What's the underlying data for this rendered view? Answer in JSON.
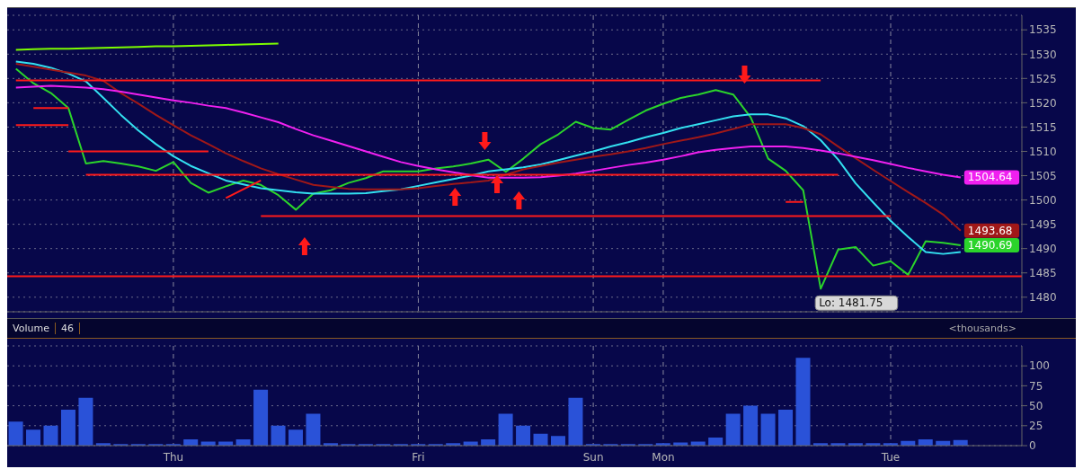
{
  "chart_data": [
    {
      "type": "line",
      "categories": [
        null,
        null,
        null,
        null,
        null,
        null,
        null,
        null,
        null,
        null,
        null,
        null,
        null,
        null,
        null,
        null,
        null,
        null,
        null,
        null,
        null,
        null,
        null,
        null,
        null,
        null,
        null,
        null,
        null,
        null,
        null,
        null,
        null,
        null,
        null,
        null,
        null,
        null,
        null,
        null,
        null,
        null,
        null,
        null,
        null,
        null,
        null,
        null,
        null,
        null,
        null,
        null,
        null,
        null,
        null,
        null,
        null,
        null
      ],
      "ylim": [
        1477,
        1538
      ],
      "yticks": [
        1480,
        1485,
        1490,
        1495,
        1500,
        1505,
        1510,
        1515,
        1520,
        1525,
        1530,
        1535
      ],
      "tick_labels": "y",
      "grid": true,
      "legend": false,
      "series": [
        {
          "color": "#2bd42b",
          "values": [
            1527,
            1524,
            1522,
            1518.9,
            1507.5,
            1508,
            1507.5,
            1506.9,
            1506,
            1507.8,
            1503.5,
            1501.5,
            1502.8,
            1504,
            1503.1,
            1501,
            1498,
            1501.3,
            1502,
            1503.5,
            1504.5,
            1505.9,
            1505.9,
            1505.9,
            1506.5,
            1506.9,
            1507.5,
            1508.3,
            1505.8,
            1508.5,
            1511.5,
            1513.5,
            1516.1,
            1514.8,
            1514.5,
            1516.5,
            1518.4,
            1519.8,
            1521,
            1521.7,
            1522.6,
            1521.7,
            1517,
            1508.5,
            1506,
            1502,
            1481.75,
            1489.8,
            1490.3,
            1486.5,
            1487.4,
            1484.6,
            1491.5,
            1491.2,
            1490.69,
            null,
            null,
            null
          ],
          "value_labels": [
            null,
            null,
            null,
            null,
            null,
            null,
            null,
            null,
            null,
            null,
            null,
            null,
            null,
            null,
            null,
            null,
            null,
            null,
            null,
            null,
            null,
            null,
            null,
            null,
            null,
            null,
            null,
            null,
            null,
            null,
            null,
            null,
            null,
            null,
            null,
            null,
            null,
            null,
            null,
            null,
            null,
            null,
            null,
            null,
            null,
            null,
            null,
            null,
            null,
            null,
            null,
            null,
            null,
            null,
            "1490.69",
            null,
            null,
            null
          ]
        },
        {
          "color": "#33e0f0",
          "values": [
            1528.5,
            1528,
            1527.2,
            1526,
            1524.4,
            1521,
            1517.5,
            1514.3,
            1511.5,
            1509,
            1507,
            1505.5,
            1504,
            1503.2,
            1502.4,
            1502,
            1501.6,
            1501.3,
            1501.3,
            1501.3,
            1501.4,
            1501.8,
            1502.2,
            1502.9,
            1503.6,
            1504.3,
            1505,
            1505.9,
            1506.3,
            1506.7,
            1507.3,
            1508.2,
            1509.1,
            1510,
            1511,
            1511.9,
            1512.9,
            1513.8,
            1514.8,
            1515.6,
            1516.4,
            1517.2,
            1517.6,
            1517.6,
            1516.8,
            1515.2,
            1512.3,
            1508.3,
            1503.4,
            1499.5,
            1495.7,
            1492.4,
            1489.3,
            1488.9,
            1489.3,
            null,
            null,
            null
          ]
        },
        {
          "color": "#a01818",
          "values": [
            1528,
            1527.4,
            1526.8,
            1526.2,
            1525.6,
            1524.5,
            1522,
            1519.8,
            1517.5,
            1515.4,
            1513.3,
            1511.5,
            1509.6,
            1508,
            1506.5,
            1505.3,
            1504.2,
            1503.1,
            1502.7,
            1502.3,
            1502.2,
            1502.2,
            1502.2,
            1502.4,
            1502.9,
            1503.3,
            1503.6,
            1504,
            1505.2,
            1506.3,
            1507,
            1507.7,
            1508.3,
            1508.9,
            1509.4,
            1510,
            1510.7,
            1511.5,
            1512.2,
            1512.9,
            1513.7,
            1514.6,
            1515.6,
            1515.6,
            1515.6,
            1514.8,
            1513.5,
            1511,
            1508.6,
            1506.2,
            1503.9,
            1501.6,
            1499.4,
            1497,
            1493.68,
            null,
            null,
            null
          ],
          "value_labels": [
            null,
            null,
            null,
            null,
            null,
            null,
            null,
            null,
            null,
            null,
            null,
            null,
            null,
            null,
            null,
            null,
            null,
            null,
            null,
            null,
            null,
            null,
            null,
            null,
            null,
            null,
            null,
            null,
            null,
            null,
            null,
            null,
            null,
            null,
            null,
            null,
            null,
            null,
            null,
            null,
            null,
            null,
            null,
            null,
            null,
            null,
            null,
            null,
            null,
            null,
            null,
            null,
            null,
            null,
            "1493.68",
            null,
            null,
            null
          ]
        },
        {
          "color": "#f020f0",
          "values": [
            1523.1,
            1523.3,
            1523.5,
            1523.3,
            1523.1,
            1522.8,
            1522.3,
            1521.7,
            1521.1,
            1520.5,
            1520,
            1519.4,
            1518.9,
            1518,
            1517,
            1516,
            1514.6,
            1513.3,
            1512.2,
            1511.1,
            1510,
            1508.9,
            1507.8,
            1507,
            1506.3,
            1505.7,
            1505.1,
            1504.6,
            1504.6,
            1504.6,
            1504.7,
            1505,
            1505.4,
            1506,
            1506.6,
            1507.2,
            1507.7,
            1508.3,
            1509,
            1509.8,
            1510.3,
            1510.7,
            1511,
            1511,
            1511,
            1510.7,
            1510.2,
            1509.6,
            1508.9,
            1508.2,
            1507.4,
            1506.6,
            1505.9,
            1505.2,
            1504.64,
            null,
            null,
            null
          ],
          "value_labels": [
            null,
            null,
            null,
            null,
            null,
            null,
            null,
            null,
            null,
            null,
            null,
            null,
            null,
            null,
            null,
            null,
            null,
            null,
            null,
            null,
            null,
            null,
            null,
            null,
            null,
            null,
            null,
            null,
            null,
            null,
            null,
            null,
            null,
            null,
            null,
            null,
            null,
            null,
            null,
            null,
            null,
            null,
            null,
            null,
            null,
            null,
            null,
            null,
            null,
            null,
            null,
            null,
            null,
            null,
            "1504.64",
            null,
            null,
            null
          ]
        },
        {
          "color": "#7cfc00",
          "values": [
            1530.9,
            1531,
            1531.1,
            1531.1,
            1531.2,
            1531.3,
            1531.4,
            1531.5,
            1531.6,
            1531.6,
            1531.7,
            1531.8,
            1531.9,
            1532,
            1532.1,
            1532.2,
            null,
            null,
            null,
            null,
            null,
            null,
            null,
            null,
            null,
            null,
            null,
            null,
            null,
            null,
            null,
            null,
            null,
            null,
            null,
            null,
            null,
            null,
            null,
            null,
            null,
            null,
            null,
            null,
            null,
            null,
            null,
            null,
            null,
            null,
            null,
            null,
            null,
            null,
            null,
            null,
            null,
            null
          ]
        },
        {
          "color": "#ff1a1a",
          "values": [
            1524.6,
            1524.6,
            1524.6,
            1524.6,
            1524.6,
            1524.6,
            1524.6,
            1524.6,
            1524.6,
            1524.6,
            1524.6,
            1524.6,
            1524.6,
            1524.6,
            1524.6,
            1524.6,
            1524.6,
            1524.6,
            1524.6,
            1524.6,
            1524.6,
            1524.6,
            1524.6,
            1524.6,
            1524.6,
            1524.6,
            1524.6,
            1524.6,
            1524.6,
            1524.6,
            1524.6,
            1524.6,
            1524.6,
            1524.6,
            1524.6,
            1524.6,
            1524.6,
            1524.6,
            1524.6,
            1524.6,
            1524.6,
            1524.6,
            1524.6,
            1524.6,
            1524.6,
            1524.6,
            1524.6,
            null,
            null,
            null,
            null,
            null,
            null,
            null,
            null,
            null,
            null,
            null
          ]
        },
        {
          "color": "#ff1a1a",
          "values": [
            null,
            1518.9,
            1518.9,
            1518.9,
            null,
            null,
            null,
            null,
            null,
            null,
            null,
            null,
            null,
            null,
            null,
            null,
            null,
            null,
            null,
            null,
            null,
            null,
            null,
            null,
            null,
            null,
            null,
            null,
            null,
            null,
            null,
            null,
            null,
            null,
            null,
            null,
            null,
            null,
            null,
            null,
            null,
            null,
            null,
            null,
            null,
            null,
            null,
            null,
            null,
            null,
            null,
            null,
            null,
            null,
            null,
            null,
            null,
            null
          ]
        },
        {
          "color": "#ff1a1a",
          "values": [
            1515.4,
            1515.4,
            1515.4,
            1515.4,
            null,
            null,
            null,
            null,
            null,
            null,
            null,
            null,
            null,
            null,
            null,
            null,
            null,
            null,
            null,
            null,
            null,
            null,
            null,
            null,
            null,
            null,
            null,
            null,
            null,
            null,
            null,
            null,
            null,
            null,
            null,
            null,
            null,
            null,
            null,
            null,
            null,
            null,
            null,
            null,
            null,
            null,
            null,
            null,
            null,
            null,
            null,
            null,
            null,
            null,
            null,
            null,
            null,
            null
          ]
        },
        {
          "color": "#ff1a1a",
          "values": [
            null,
            null,
            null,
            1510,
            1510,
            1510,
            1510,
            1510,
            1510,
            1510,
            1510,
            1510,
            null,
            null,
            null,
            null,
            null,
            null,
            null,
            null,
            null,
            null,
            null,
            null,
            null,
            null,
            null,
            null,
            null,
            null,
            null,
            null,
            null,
            null,
            null,
            null,
            null,
            null,
            null,
            null,
            null,
            null,
            null,
            null,
            null,
            null,
            null,
            null,
            null,
            null,
            null,
            null,
            null,
            null,
            null,
            null,
            null,
            null
          ]
        },
        {
          "color": "#ff1a1a",
          "values": [
            null,
            null,
            null,
            null,
            1505.2,
            1505.2,
            1505.2,
            1505.2,
            1505.2,
            1505.2,
            1505.2,
            1505.2,
            1505.2,
            1505.2,
            1505.2,
            1505.2,
            1505.2,
            1505.2,
            1505.2,
            1505.2,
            1505.2,
            1505.2,
            1505.2,
            1505.2,
            1505.2,
            1505.2,
            1505.2,
            1505.2,
            1505.2,
            1505.2,
            1505.2,
            1505.2,
            1505.2,
            1505.2,
            1505.2,
            1505.2,
            1505.2,
            1505.2,
            1505.2,
            1505.2,
            1505.2,
            1505.2,
            1505.2,
            1505.2,
            1505.2,
            1505.2,
            1505.2,
            1505.2,
            null,
            null,
            null,
            null,
            null,
            null,
            null,
            null,
            null,
            null
          ]
        },
        {
          "color": "#ff1a1a",
          "values": [
            null,
            null,
            null,
            null,
            null,
            null,
            null,
            null,
            null,
            null,
            null,
            null,
            null,
            null,
            1496.7,
            1496.7,
            1496.7,
            1496.7,
            1496.7,
            1496.7,
            1496.7,
            1496.7,
            1496.7,
            1496.7,
            1496.7,
            1496.7,
            1496.7,
            1496.7,
            1496.7,
            1496.7,
            1496.7,
            1496.7,
            1496.7,
            1496.7,
            1496.7,
            1496.7,
            1496.7,
            1496.7,
            1496.7,
            1496.7,
            1496.7,
            1496.7,
            1496.7,
            1496.7,
            1496.7,
            1496.7,
            1496.7,
            1496.7,
            1496.7,
            1496.7,
            1496.7,
            null,
            null,
            null,
            null,
            null,
            null,
            null
          ]
        },
        {
          "color": "#ff1a1a",
          "values": [
            null,
            null,
            null,
            null,
            null,
            null,
            null,
            null,
            null,
            null,
            null,
            null,
            null,
            null,
            null,
            null,
            null,
            null,
            null,
            null,
            null,
            null,
            null,
            null,
            null,
            null,
            null,
            null,
            null,
            null,
            null,
            null,
            null,
            null,
            null,
            null,
            null,
            null,
            null,
            null,
            null,
            null,
            null,
            null,
            1499.6,
            1499.6,
            null,
            null,
            null,
            null,
            null,
            null,
            null,
            null,
            null,
            null,
            null,
            null
          ]
        },
        {
          "color": "#ff1a1a",
          "values": [
            null,
            null,
            null,
            null,
            null,
            null,
            null,
            null,
            null,
            null,
            null,
            null,
            1500.4,
            1502.2,
            1504,
            null,
            null,
            null,
            null,
            null,
            null,
            null,
            null,
            null,
            null,
            null,
            null,
            null,
            null,
            null,
            null,
            null,
            null,
            null,
            null,
            null,
            null,
            null,
            null,
            null,
            null,
            null,
            null,
            null,
            null,
            null,
            null,
            null,
            null,
            null,
            null,
            null,
            null,
            null,
            null,
            null,
            null,
            null
          ]
        }
      ],
      "ref_lines": [
        {
          "axis": "y",
          "value": 1484.3,
          "color": "#ff1a1a"
        }
      ],
      "annotations": [
        "Lo: 1481.75"
      ]
    },
    {
      "type": "bar",
      "title": "Volume",
      "annotations": [
        "46",
        "<thousands>"
      ],
      "color": "#2a52d8",
      "categories": [
        null,
        null,
        null,
        null,
        null,
        null,
        null,
        null,
        null,
        "Thu",
        null,
        null,
        null,
        null,
        null,
        null,
        null,
        null,
        null,
        null,
        null,
        null,
        null,
        "Fri",
        null,
        null,
        null,
        null,
        null,
        null,
        null,
        null,
        null,
        "Sun",
        null,
        null,
        null,
        "Mon",
        null,
        null,
        null,
        null,
        null,
        null,
        null,
        null,
        null,
        null,
        null,
        null,
        "Tue",
        null,
        null,
        null,
        null,
        null,
        null,
        null
      ],
      "ylim": [
        0,
        125
      ],
      "yticks": [
        0,
        25,
        50,
        75,
        100
      ],
      "grid": true,
      "legend": false,
      "values": [
        30,
        20,
        25,
        45,
        60,
        3,
        2,
        2,
        2,
        2,
        8,
        5,
        5,
        8,
        70,
        25,
        20,
        40,
        3,
        2,
        2,
        2,
        2,
        2,
        2,
        3,
        5,
        8,
        40,
        25,
        15,
        12,
        60,
        2,
        2,
        2,
        2,
        3,
        4,
        5,
        10,
        40,
        50,
        40,
        45,
        110,
        3,
        3,
        3,
        3,
        3,
        6,
        8,
        6,
        7,
        null,
        null,
        null
      ]
    }
  ]
}
